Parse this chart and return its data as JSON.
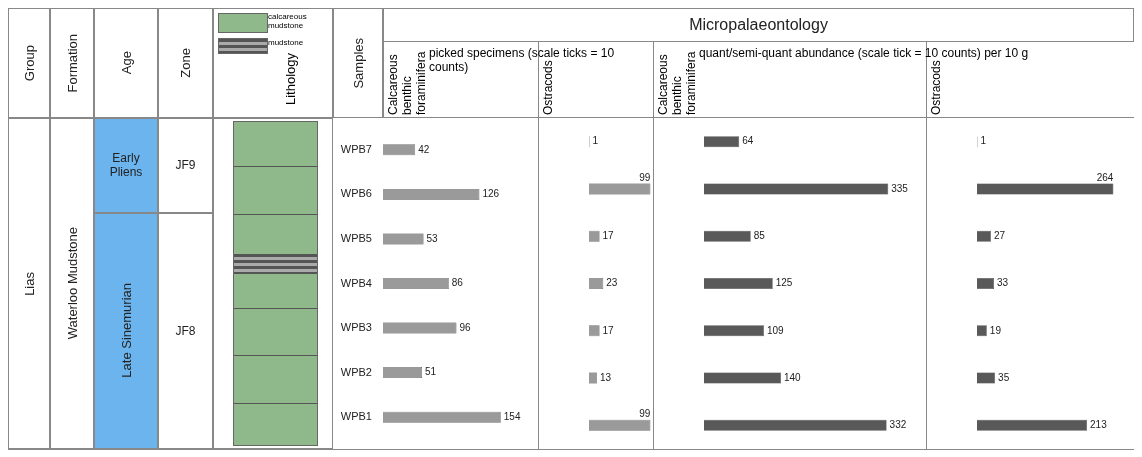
{
  "chart_data": [
    {
      "type": "other",
      "annotations": [
        "Group",
        "Formation",
        "Age",
        "Zone",
        "Lithology",
        "Samples",
        "calcareous mudstone",
        "mudstone",
        "Micropalaeontology",
        "Lias",
        "Waterloo Mudstone",
        "Early Pliens",
        "Late Sinemurian",
        "JF9",
        "JF8"
      ]
    },
    {
      "type": "bar",
      "orientation": "horizontal",
      "title": "Calcareous benthic foraminifera",
      "subtitle": "picked specimens (scale ticks = 10 counts)",
      "categories": [
        "WPB7",
        "WPB6",
        "WPB5",
        "WPB4",
        "WPB3",
        "WPB2",
        "WPB1"
      ],
      "values": [
        42,
        126,
        53,
        86,
        96,
        51,
        154
      ],
      "color": "#9a9a9a",
      "data_labels": true,
      "tick_labels": "y"
    },
    {
      "type": "bar",
      "orientation": "horizontal",
      "title": "Ostracods",
      "categories": [
        null,
        null,
        null,
        null,
        null,
        null,
        null
      ],
      "values": [
        1,
        99,
        17,
        23,
        17,
        13,
        99
      ],
      "color": "#9a9a9a",
      "data_labels": true,
      "tick_labels": false
    },
    {
      "type": "bar",
      "orientation": "horizontal",
      "title": "Calcareous benthic foraminifera",
      "subtitle": "quant/semi-quant abundance (scale tick = 10 counts) per 10 g",
      "categories": [
        null,
        null,
        null,
        null,
        null,
        null,
        null
      ],
      "values": [
        64,
        335,
        85,
        125,
        109,
        140,
        332
      ],
      "color": "#595959",
      "data_labels": true,
      "tick_labels": false
    },
    {
      "type": "bar",
      "orientation": "horizontal",
      "title": "Ostracods",
      "categories": [
        null,
        null,
        null,
        null,
        null,
        null,
        null
      ],
      "values": [
        1,
        264,
        27,
        33,
        19,
        35,
        213
      ],
      "color": "#595959",
      "data_labels": true,
      "tick_labels": false
    }
  ]
}
